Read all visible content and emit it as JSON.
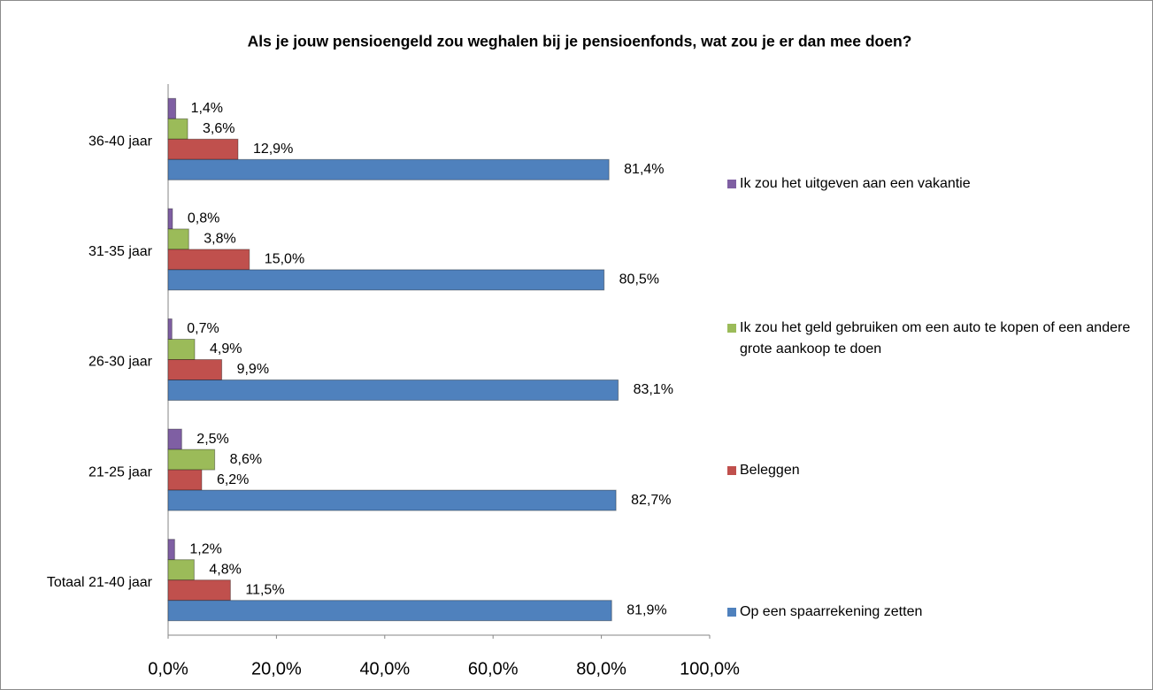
{
  "chart_data": {
    "type": "hbar",
    "title": "Als je jouw pensioengeld zou weghalen bij je pensioenfonds, wat zou je er dan mee doen?",
    "categories": [
      "36-40 jaar",
      "31-35 jaar",
      "26-30 jaar",
      "21-25 jaar",
      "Totaal 21-40 jaar"
    ],
    "series": [
      {
        "name": "Ik zou het uitgeven aan een vakantie",
        "color": "#7f5fa3",
        "values": [
          1.4,
          0.8,
          0.7,
          2.5,
          1.2
        ],
        "value_labels": [
          "1,4%",
          "0,8%",
          "0,7%",
          "2,5%",
          "1,2%"
        ]
      },
      {
        "name": "Ik zou het geld gebruiken om een auto te kopen of een andere grote aankoop te doen",
        "color": "#9bbb59",
        "values": [
          3.6,
          3.8,
          4.9,
          8.6,
          4.8
        ],
        "value_labels": [
          "3,6%",
          "3,8%",
          "4,9%",
          "8,6%",
          "4,8%"
        ]
      },
      {
        "name": "Beleggen",
        "color": "#c0504d",
        "values": [
          12.9,
          15.0,
          9.9,
          6.2,
          11.5
        ],
        "value_labels": [
          "12,9%",
          "15,0%",
          "9,9%",
          "6,2%",
          "11,5%"
        ]
      },
      {
        "name": "Op een spaarrekening zetten",
        "color": "#4f81bd",
        "values": [
          81.4,
          80.5,
          83.1,
          82.7,
          81.9
        ],
        "value_labels": [
          "81,4%",
          "80,5%",
          "83,1%",
          "82,7%",
          "81,9%"
        ]
      }
    ],
    "xlim": [
      0,
      100
    ],
    "xticks": [
      {
        "value": 0,
        "label": "0,0%"
      },
      {
        "value": 20,
        "label": "20,0%"
      },
      {
        "value": 40,
        "label": "40,0%"
      },
      {
        "value": 60,
        "label": "60,0%"
      },
      {
        "value": 80,
        "label": "80,0%"
      },
      {
        "value": 100,
        "label": "100,0%"
      }
    ],
    "grid": false,
    "legend": "right"
  }
}
